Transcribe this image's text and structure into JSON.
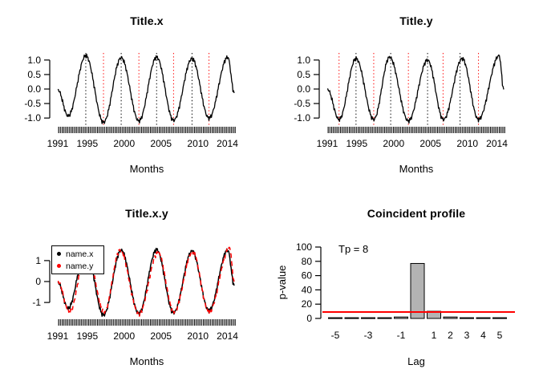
{
  "colors": {
    "foreground": "#000000",
    "accent_red": "#ff0000",
    "bar_fill": "#b3b3b3",
    "background": "#ffffff"
  },
  "chart_data": [
    {
      "id": "title-x",
      "type": "line",
      "title": "Title.x",
      "xlabel": "Months",
      "ylabel": "",
      "xlim": [
        1991,
        2014.92
      ],
      "ylim": [
        -1.3,
        1.3
      ],
      "x_tick_years": [
        1991,
        1995,
        2000,
        2005,
        2010,
        2014
      ],
      "x_tick_labels": [
        "1991",
        "1995",
        "2000",
        "2005",
        "2010",
        "2014"
      ],
      "y_ticks": [
        1.0,
        0.5,
        0.0,
        -0.5,
        -1.0
      ],
      "y_tick_labels": [
        "1.0",
        "0.5",
        "0.0",
        "-0.5",
        "-1.0"
      ],
      "grid": false,
      "rug": "monthly ticks along x axis",
      "peak_vlines_black_dotted": [
        1994.8,
        1999.6,
        2004.4,
        2009.2
      ],
      "trough_vlines_red_dotted": [
        1997.2,
        2002.0,
        2006.7,
        2011.5
      ],
      "series": [
        {
          "name": "x",
          "color": "#000000",
          "dash": "solid",
          "width": 1.3,
          "noise": 0.05,
          "extrema": [
            [
              1991.0,
              -0.02
            ],
            [
              1992.4,
              -0.93
            ],
            [
              1994.8,
              1.15
            ],
            [
              1997.2,
              -1.15
            ],
            [
              1999.6,
              1.08
            ],
            [
              2002.0,
              -1.1
            ],
            [
              2004.4,
              1.1
            ],
            [
              2006.7,
              -1.08
            ],
            [
              2009.2,
              1.05
            ],
            [
              2011.5,
              -1.0
            ],
            [
              2014.05,
              1.1
            ],
            [
              2014.92,
              -0.12
            ]
          ]
        }
      ]
    },
    {
      "id": "title-y",
      "type": "line",
      "title": "Title.y",
      "xlabel": "Months",
      "ylabel": "",
      "xlim": [
        1991,
        2014.92
      ],
      "ylim": [
        -1.3,
        1.3
      ],
      "x_tick_years": [
        1991,
        1995,
        2000,
        2005,
        2010,
        2014
      ],
      "x_tick_labels": [
        "1991",
        "1995",
        "2000",
        "2005",
        "2010",
        "2014"
      ],
      "y_ticks": [
        1.0,
        0.5,
        0.0,
        -0.5,
        -1.0
      ],
      "y_tick_labels": [
        "1.0",
        "0.5",
        "0.0",
        "-0.5",
        "-1.0"
      ],
      "grid": false,
      "rug": "monthly ticks along x axis",
      "peak_vlines_black_dotted": [
        1994.9,
        1999.6,
        2004.6,
        2009.0
      ],
      "trough_vlines_red_dotted": [
        1992.6,
        1997.3,
        2002.0,
        2006.7,
        2011.5
      ],
      "series": [
        {
          "name": "y",
          "color": "#000000",
          "dash": "solid",
          "width": 1.3,
          "noise": 0.05,
          "extrema": [
            [
              1991.0,
              0.0
            ],
            [
              1992.6,
              -1.05
            ],
            [
              1994.9,
              1.05
            ],
            [
              1997.3,
              -1.05
            ],
            [
              1999.45,
              1.1
            ],
            [
              2002.0,
              -1.1
            ],
            [
              2004.6,
              1.0
            ],
            [
              2006.75,
              -1.05
            ],
            [
              2009.3,
              1.05
            ],
            [
              2011.5,
              -1.05
            ],
            [
              2014.3,
              1.15
            ],
            [
              2014.92,
              0.0
            ]
          ]
        }
      ]
    },
    {
      "id": "title-x-y",
      "type": "line",
      "title": "Title.x.y",
      "xlabel": "Months",
      "ylabel": "",
      "xlim": [
        1991,
        2014.92
      ],
      "ylim": [
        -1.8,
        1.8
      ],
      "x_tick_years": [
        1991,
        1995,
        2000,
        2005,
        2010,
        2014
      ],
      "x_tick_labels": [
        "1991",
        "1995",
        "2000",
        "2005",
        "2010",
        "2014"
      ],
      "y_ticks": [
        1,
        0,
        -1
      ],
      "y_tick_labels": [
        "1",
        "0",
        "-1"
      ],
      "grid": false,
      "rug": "monthly ticks along x axis",
      "peak_vlines_black_dotted": [],
      "trough_vlines_red_dotted": [],
      "legend_position": "topleft",
      "series": [
        {
          "name": "name.x",
          "color": "#000000",
          "dash": "solid",
          "width": 1.5,
          "noise": 0.07,
          "extrema": [
            [
              1991.0,
              -0.03
            ],
            [
              1992.4,
              -1.28
            ],
            [
              1994.8,
              1.55
            ],
            [
              1997.2,
              -1.6
            ],
            [
              1999.6,
              1.49
            ],
            [
              2002.0,
              -1.52
            ],
            [
              2004.4,
              1.52
            ],
            [
              2006.7,
              -1.49
            ],
            [
              2009.2,
              1.45
            ],
            [
              2011.5,
              -1.38
            ],
            [
              2014.05,
              1.5
            ],
            [
              2014.92,
              -0.17
            ]
          ]
        },
        {
          "name": "name.y",
          "color": "#ff0000",
          "dash": "dashed",
          "width": 1.5,
          "noise": 0.07,
          "extrema": [
            [
              1991.0,
              0.0
            ],
            [
              1992.6,
              -1.45
            ],
            [
              1994.9,
              1.45
            ],
            [
              1997.3,
              -1.45
            ],
            [
              1999.45,
              1.5
            ],
            [
              2002.0,
              -1.55
            ],
            [
              2004.6,
              1.38
            ],
            [
              2006.75,
              -1.45
            ],
            [
              2009.3,
              1.42
            ],
            [
              2011.5,
              -1.45
            ],
            [
              2014.3,
              1.6
            ],
            [
              2014.92,
              0.0
            ]
          ]
        }
      ]
    },
    {
      "id": "coincident-profile",
      "type": "bar",
      "title": "Coincident profile",
      "xlabel": "Lag",
      "ylabel": "p-value",
      "annotation": "Tp = 8",
      "categories": [
        -5,
        -4,
        -3,
        -2,
        -1,
        0,
        1,
        2,
        3,
        4,
        5
      ],
      "x_tick_labels": [
        "-5",
        "",
        "-3",
        "",
        "-1",
        "",
        "1",
        "2",
        "3",
        "4",
        "5"
      ],
      "values": [
        1,
        1,
        1,
        1,
        2,
        77,
        10,
        2,
        1,
        1,
        1
      ],
      "y_ticks": [
        0,
        20,
        40,
        60,
        80,
        100
      ],
      "y_tick_labels": [
        "0",
        "20",
        "40",
        "60",
        "80",
        "100"
      ],
      "ylim": [
        0,
        100
      ],
      "grid": false,
      "hline": {
        "value": 9,
        "color": "#ff0000",
        "width": 2
      },
      "bar_fill": "#b3b3b3",
      "bar_border": "#000000"
    }
  ]
}
